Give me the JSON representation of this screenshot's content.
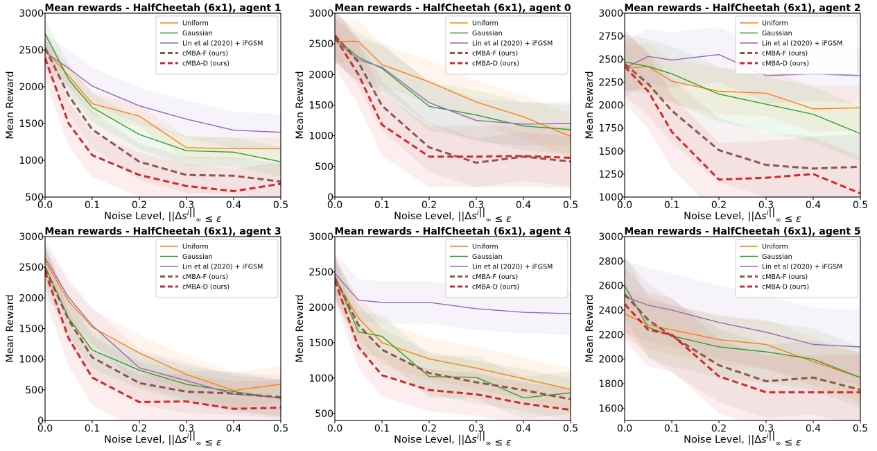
{
  "colors": {
    "Uniform": "#ff7f0e",
    "Gaussian": "#2ca02c",
    "Lin et al (2020) + iFGSM": "#9467bd",
    "cMBA-F (ours)": "#8c564b",
    "cMBA-D (ours)": "#d62728"
  },
  "chart_data": [
    {
      "type": "line",
      "title": "Mean rewards - HalfCheetah (6x1), agent 1",
      "xlabel": "Noise Level, ||Δs^i||_∞ ≤ ε",
      "ylabel": "Mean Reward",
      "x": [
        0.0,
        0.05,
        0.1,
        0.2,
        0.3,
        0.4,
        0.5
      ],
      "xticks": [
        "0.0",
        "0.1",
        "0.2",
        "0.3",
        "0.4",
        "0.5"
      ],
      "xlim": [
        0,
        0.5
      ],
      "ylim": [
        500,
        3000
      ],
      "yticks": [
        "500",
        "1000",
        "1500",
        "2000",
        "2500",
        "3000"
      ],
      "legend": "top-right",
      "series": [
        {
          "name": "Uniform",
          "values": [
            2500,
            2150,
            1770,
            1600,
            1170,
            1160,
            1160
          ],
          "band": 150
        },
        {
          "name": "Gaussian",
          "values": [
            2720,
            2100,
            1720,
            1350,
            1130,
            1110,
            980
          ],
          "band": 200
        },
        {
          "name": "Lin et al (2020) + iFGSM",
          "values": [
            2470,
            2250,
            2010,
            1740,
            1560,
            1410,
            1380
          ],
          "band": 250
        },
        {
          "name": "cMBA-F (ours)",
          "values": [
            2530,
            1880,
            1420,
            980,
            800,
            790,
            710
          ],
          "band": 250
        },
        {
          "name": "cMBA-D (ours)",
          "values": [
            2390,
            1500,
            1070,
            800,
            650,
            580,
            680
          ],
          "band": 300
        }
      ]
    },
    {
      "type": "line",
      "title": "Mean rewards - HalfCheetah (6x1), agent 0",
      "xlabel": "Noise Level, ||Δs^i||_∞ ≤ ε",
      "ylabel": "Mean Reward",
      "x": [
        0.0,
        0.05,
        0.1,
        0.2,
        0.3,
        0.4,
        0.5
      ],
      "xticks": [
        "0.0",
        "0.1",
        "0.2",
        "0.3",
        "0.4",
        "0.5"
      ],
      "xlim": [
        0,
        0.5
      ],
      "ylim": [
        0,
        3000
      ],
      "yticks": [
        "0",
        "500",
        "1000",
        "1500",
        "2000",
        "2500",
        "3000"
      ],
      "legend": "top-right",
      "series": [
        {
          "name": "Uniform",
          "values": [
            2540,
            2540,
            2160,
            1880,
            1550,
            1310,
            990
          ],
          "band": 350
        },
        {
          "name": "Gaussian",
          "values": [
            2600,
            2280,
            2100,
            1480,
            1340,
            1160,
            1100
          ],
          "band": 400
        },
        {
          "name": "Lin et al (2020) + iFGSM",
          "values": [
            2560,
            2240,
            2120,
            1540,
            1250,
            1190,
            1200
          ],
          "band": 350
        },
        {
          "name": "cMBA-F (ours)",
          "values": [
            2640,
            2200,
            1490,
            810,
            560,
            660,
            580
          ],
          "band": 400
        },
        {
          "name": "cMBA-D (ours)",
          "values": [
            2610,
            2000,
            1180,
            660,
            660,
            670,
            640
          ],
          "band": 500
        }
      ]
    },
    {
      "type": "line",
      "title": "Mean rewards - HalfCheetah (6x1), agent 2",
      "xlabel": "Noise Level, ||Δs^i||_∞ ≤ ε",
      "ylabel": "Mean Reward",
      "x": [
        0.0,
        0.05,
        0.1,
        0.2,
        0.3,
        0.4,
        0.5
      ],
      "xticks": [
        "0.0",
        "0.1",
        "0.2",
        "0.3",
        "0.4",
        "0.5"
      ],
      "xlim": [
        0,
        0.5
      ],
      "ylim": [
        1000,
        3000
      ],
      "yticks": [
        "1000",
        "1250",
        "1500",
        "1750",
        "2000",
        "2250",
        "2500",
        "2750",
        "3000"
      ],
      "legend": "top-right",
      "series": [
        {
          "name": "Uniform",
          "values": [
            2400,
            2420,
            2260,
            2150,
            2130,
            1960,
            1970
          ],
          "band": 250
        },
        {
          "name": "Gaussian",
          "values": [
            2470,
            2420,
            2340,
            2120,
            2010,
            1900,
            1690
          ],
          "band": 300
        },
        {
          "name": "Lin et al (2020) + iFGSM",
          "values": [
            2400,
            2530,
            2490,
            2550,
            2320,
            2340,
            2320
          ],
          "band": 300
        },
        {
          "name": "cMBA-F (ours)",
          "values": [
            2450,
            2230,
            1940,
            1510,
            1350,
            1310,
            1330
          ],
          "band": 350
        },
        {
          "name": "cMBA-D (ours)",
          "values": [
            2420,
            2150,
            1710,
            1190,
            1210,
            1250,
            1040
          ],
          "band": 400
        }
      ]
    },
    {
      "type": "line",
      "title": "Mean rewards - HalfCheetah (6x1), agent 3",
      "xlabel": "Noise Level, ||Δs^i||_∞ ≤ ε",
      "ylabel": "Mean Reward",
      "x": [
        0.0,
        0.05,
        0.1,
        0.2,
        0.3,
        0.4,
        0.5
      ],
      "xticks": [
        "0.0",
        "0.1",
        "0.2",
        "0.3",
        "0.4",
        "0.5"
      ],
      "xlim": [
        0,
        0.5
      ],
      "ylim": [
        0,
        3000
      ],
      "yticks": [
        "0",
        "500",
        "1000",
        "1500",
        "2000",
        "2500",
        "3000"
      ],
      "legend": "top-right",
      "series": [
        {
          "name": "Uniform",
          "values": [
            2600,
            1950,
            1520,
            1100,
            750,
            490,
            590
          ],
          "band": 300
        },
        {
          "name": "Gaussian",
          "values": [
            2520,
            1670,
            1150,
            820,
            590,
            470,
            360
          ],
          "band": 300
        },
        {
          "name": "Lin et al (2020) + iFGSM",
          "values": [
            2650,
            2010,
            1550,
            860,
            650,
            430,
            370
          ],
          "band": 300
        },
        {
          "name": "cMBA-F (ours)",
          "values": [
            2480,
            1640,
            1030,
            610,
            470,
            440,
            380
          ],
          "band": 350
        },
        {
          "name": "cMBA-D (ours)",
          "values": [
            2430,
            1340,
            700,
            300,
            310,
            190,
            210
          ],
          "band": 450
        }
      ]
    },
    {
      "type": "line",
      "title": "Mean rewards - HalfCheetah (6x1), agent 4",
      "xlabel": "Noise Level, ||Δs^i||_∞ ≤ ε",
      "ylabel": "Mean Reward",
      "x": [
        0.0,
        0.05,
        0.1,
        0.2,
        0.3,
        0.4,
        0.5
      ],
      "xticks": [
        "0.0",
        "0.1",
        "0.2",
        "0.3",
        "0.4",
        "0.5"
      ],
      "xlim": [
        0,
        0.5
      ],
      "ylim": [
        400,
        3000
      ],
      "yticks": [
        "500",
        "1000",
        "1500",
        "2000",
        "2500",
        "3000"
      ],
      "legend": "top-right",
      "series": [
        {
          "name": "Uniform",
          "values": [
            2400,
            1850,
            1500,
            1270,
            1140,
            990,
            840
          ],
          "band": 300
        },
        {
          "name": "Gaussian",
          "values": [
            2450,
            1650,
            1590,
            1020,
            1010,
            720,
            790
          ],
          "band": 300
        },
        {
          "name": "Lin et al (2020) + iFGSM",
          "values": [
            2480,
            2100,
            2070,
            2070,
            1980,
            1930,
            1910
          ],
          "band": 300
        },
        {
          "name": "cMBA-F (ours)",
          "values": [
            2420,
            1750,
            1400,
            1070,
            940,
            830,
            700
          ],
          "band": 300
        },
        {
          "name": "cMBA-D (ours)",
          "values": [
            2380,
            1440,
            1040,
            830,
            770,
            640,
            550
          ],
          "band": 300
        }
      ]
    },
    {
      "type": "line",
      "title": "Mean rewards - HalfCheetah (6x1), agent 5",
      "xlabel": "Noise Level, ||Δs^i||_∞ ≤ ε",
      "ylabel": "Mean Reward",
      "x": [
        0.0,
        0.05,
        0.1,
        0.2,
        0.3,
        0.4,
        0.5
      ],
      "xticks": [
        "0.0",
        "0.1",
        "0.2",
        "0.3",
        "0.4",
        "0.5"
      ],
      "xlim": [
        0,
        0.5
      ],
      "ylim": [
        1500,
        3000
      ],
      "yticks": [
        "1600",
        "1800",
        "2000",
        "2200",
        "2400",
        "2600",
        "2800",
        "3000"
      ],
      "legend": "top-right",
      "series": [
        {
          "name": "Uniform",
          "values": [
            2370,
            2280,
            2240,
            2160,
            2120,
            1980,
            1850
          ],
          "band": 200
        },
        {
          "name": "Gaussian",
          "values": [
            2600,
            2260,
            2190,
            2100,
            2060,
            2000,
            1850
          ],
          "band": 250
        },
        {
          "name": "Lin et al (2020) + iFGSM",
          "values": [
            2510,
            2440,
            2400,
            2300,
            2220,
            2120,
            2100
          ],
          "band": 300
        },
        {
          "name": "cMBA-F (ours)",
          "values": [
            2530,
            2320,
            2190,
            1950,
            1820,
            1850,
            1750
          ],
          "band": 300
        },
        {
          "name": "cMBA-D (ours)",
          "values": [
            2450,
            2240,
            2200,
            1860,
            1730,
            1730,
            1730
          ],
          "band": 300
        }
      ]
    }
  ]
}
